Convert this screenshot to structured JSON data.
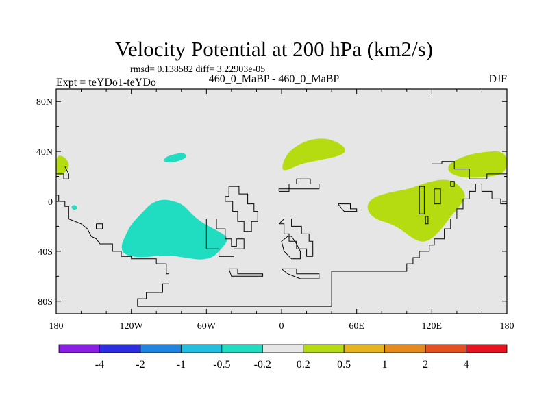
{
  "chart_data": {
    "type": "contour-map",
    "title": "Velocity Potential at 200 hPa (km2/s)",
    "stats": "rmsd= 0.138582  diff= 3.22903e-05",
    "experiment": "Expt = teYDo1-teYDo",
    "case": "460_0_MaBP - 460_0_MaBP",
    "season": "DJF",
    "xlim": [
      180,
      540
    ],
    "ylim": [
      -90,
      90
    ],
    "x_ticks": [
      {
        "value": 180,
        "label": "180"
      },
      {
        "value": 240,
        "label": "120W"
      },
      {
        "value": 300,
        "label": "60W"
      },
      {
        "value": 360,
        "label": "0"
      },
      {
        "value": 420,
        "label": "60E"
      },
      {
        "value": 480,
        "label": "120E"
      },
      {
        "value": 540,
        "label": "180"
      }
    ],
    "y_ticks": [
      {
        "value": 80,
        "label": "80N"
      },
      {
        "value": 40,
        "label": "40N"
      },
      {
        "value": 0,
        "label": "0"
      },
      {
        "value": -40,
        "label": "40S"
      },
      {
        "value": -80,
        "label": "80S"
      }
    ],
    "colorbar": {
      "colors": [
        "#8b1ee6",
        "#2a2ee0",
        "#1e86e0",
        "#22c0e0",
        "#20dcc0",
        "#e6e6e6",
        "#b4dc10",
        "#e6b41e",
        "#e68a1e",
        "#e6501e",
        "#e6141e"
      ],
      "labels": [
        "-4",
        "-2",
        "-1",
        "-0.5",
        "-0.2",
        "0.2",
        "0.5",
        "1",
        "2",
        "4"
      ]
    },
    "background_color": "#e6e6e6",
    "regions": [
      {
        "name": "cyan-southeast-pacific",
        "color": "#20dcc0",
        "points": [
          [
            235,
            -28
          ],
          [
            232,
            -35
          ],
          [
            233,
            -42
          ],
          [
            245,
            -45
          ],
          [
            258,
            -44
          ],
          [
            270,
            -43
          ],
          [
            283,
            -45
          ],
          [
            295,
            -47
          ],
          [
            305,
            -45
          ],
          [
            312,
            -38
          ],
          [
            318,
            -30
          ],
          [
            312,
            -25
          ],
          [
            298,
            -18
          ],
          [
            290,
            -12
          ],
          [
            282,
            -3
          ],
          [
            275,
            0
          ],
          [
            265,
            2
          ],
          [
            255,
            -2
          ],
          [
            248,
            -10
          ],
          [
            240,
            -18
          ]
        ]
      },
      {
        "name": "cyan-north-pacific",
        "color": "#20dcc0",
        "points": [
          [
            265,
            32
          ],
          [
            268,
            36
          ],
          [
            275,
            38
          ],
          [
            282,
            39
          ],
          [
            285,
            36
          ],
          [
            280,
            33
          ],
          [
            272,
            31
          ]
        ]
      },
      {
        "name": "cyan-small-patch",
        "color": "#20dcc0",
        "points": [
          [
            192,
            -5
          ],
          [
            193,
            -3
          ],
          [
            196,
            -3
          ],
          [
            197,
            -6
          ],
          [
            194,
            -7
          ]
        ]
      },
      {
        "name": "green-north-africa",
        "color": "#b4dc10",
        "points": [
          [
            360,
            25
          ],
          [
            362,
            34
          ],
          [
            368,
            42
          ],
          [
            380,
            49
          ],
          [
            395,
            51
          ],
          [
            408,
            46
          ],
          [
            412,
            40
          ],
          [
            405,
            36
          ],
          [
            390,
            33
          ],
          [
            375,
            30
          ],
          [
            365,
            25
          ]
        ]
      },
      {
        "name": "green-west-pacific",
        "color": "#b4dc10",
        "points": [
          [
            430,
            -10
          ],
          [
            428,
            -3
          ],
          [
            433,
            3
          ],
          [
            445,
            7
          ],
          [
            462,
            10
          ],
          [
            475,
            15
          ],
          [
            490,
            18
          ],
          [
            500,
            15
          ],
          [
            508,
            5
          ],
          [
            503,
            -3
          ],
          [
            495,
            -12
          ],
          [
            488,
            -22
          ],
          [
            480,
            -30
          ],
          [
            473,
            -33
          ],
          [
            465,
            -30
          ],
          [
            455,
            -22
          ],
          [
            445,
            -17
          ],
          [
            437,
            -15
          ]
        ]
      },
      {
        "name": "green-northwest-pacific",
        "color": "#b4dc10",
        "points": [
          [
            492,
            28
          ],
          [
            500,
            34
          ],
          [
            515,
            39
          ],
          [
            540,
            41
          ],
          [
            540,
            22
          ],
          [
            520,
            19
          ],
          [
            505,
            19
          ],
          [
            495,
            22
          ]
        ]
      },
      {
        "name": "green-dateline-west",
        "color": "#b4dc10",
        "points": [
          [
            180,
            38
          ],
          [
            180,
            20
          ],
          [
            186,
            22
          ],
          [
            191,
            28
          ],
          [
            188,
            35
          ]
        ]
      }
    ],
    "coastlines": [
      [
        [
          180,
          22
        ],
        [
          186,
          22
        ],
        [
          186,
          18
        ],
        [
          190,
          18
        ],
        [
          190,
          22
        ],
        [
          187,
          28
        ]
      ],
      [
        [
          180,
          5
        ],
        [
          182,
          5
        ],
        [
          182,
          0
        ],
        [
          187,
          0
        ],
        [
          187,
          -4
        ],
        [
          190,
          -4
        ],
        [
          190,
          -14
        ],
        [
          200,
          -18
        ],
        [
          205,
          -22
        ],
        [
          208,
          -28
        ],
        [
          212,
          -30
        ],
        [
          215,
          -34
        ],
        [
          225,
          -34
        ],
        [
          225,
          -40
        ],
        [
          232,
          -40
        ],
        [
          232,
          -44
        ],
        [
          240,
          -44
        ],
        [
          240,
          -46
        ],
        [
          260,
          -46
        ],
        [
          260,
          -50
        ],
        [
          268,
          -50
        ],
        [
          268,
          -58
        ],
        [
          270,
          -58
        ],
        [
          270,
          -66
        ],
        [
          265,
          -66
        ],
        [
          265,
          -73
        ],
        [
          252,
          -73
        ],
        [
          252,
          -78
        ],
        [
          245,
          -78
        ],
        [
          245,
          -84
        ],
        [
          400,
          -84
        ],
        [
          400,
          -56
        ],
        [
          460,
          -56
        ],
        [
          460,
          -50
        ],
        [
          465,
          -50
        ],
        [
          465,
          -45
        ],
        [
          470,
          -45
        ],
        [
          470,
          -40
        ],
        [
          478,
          -40
        ],
        [
          478,
          -35
        ],
        [
          482,
          -35
        ],
        [
          482,
          -30
        ],
        [
          490,
          -30
        ],
        [
          490,
          -22
        ],
        [
          495,
          -22
        ],
        [
          495,
          -14
        ],
        [
          500,
          -14
        ],
        [
          500,
          -6
        ],
        [
          505,
          -6
        ],
        [
          505,
          2
        ],
        [
          510,
          2
        ],
        [
          510,
          8
        ],
        [
          515,
          8
        ],
        [
          515,
          14
        ],
        [
          520,
          14
        ],
        [
          520,
          8
        ],
        [
          528,
          8
        ],
        [
          528,
          2
        ],
        [
          535,
          2
        ],
        [
          535,
          -2
        ],
        [
          540,
          -2
        ]
      ],
      [
        [
          212,
          -18
        ],
        [
          217,
          -18
        ],
        [
          217,
          -22
        ],
        [
          212,
          -22
        ],
        [
          212,
          -18
        ]
      ],
      [
        [
          315,
          0
        ],
        [
          321,
          0
        ],
        [
          321,
          -8
        ],
        [
          325,
          -8
        ],
        [
          325,
          -16
        ],
        [
          330,
          -16
        ],
        [
          330,
          -24
        ],
        [
          336,
          -24
        ],
        [
          336,
          -16
        ],
        [
          341,
          -16
        ],
        [
          341,
          -8
        ],
        [
          338,
          -8
        ],
        [
          338,
          -2
        ],
        [
          333,
          -2
        ],
        [
          333,
          6
        ],
        [
          326,
          6
        ],
        [
          326,
          12
        ],
        [
          318,
          12
        ],
        [
          318,
          4
        ],
        [
          315,
          4
        ],
        [
          315,
          0
        ]
      ],
      [
        [
          300,
          -14
        ],
        [
          308,
          -14
        ],
        [
          308,
          -22
        ],
        [
          315,
          -22
        ],
        [
          315,
          -30
        ],
        [
          320,
          -30
        ],
        [
          320,
          -36
        ],
        [
          324,
          -36
        ],
        [
          324,
          -30
        ],
        [
          330,
          -30
        ],
        [
          330,
          -38
        ],
        [
          322,
          -38
        ],
        [
          322,
          -44
        ],
        [
          310,
          -44
        ],
        [
          310,
          -38
        ],
        [
          300,
          -38
        ],
        [
          300,
          -14
        ]
      ],
      [
        [
          318,
          -54
        ],
        [
          325,
          -54
        ],
        [
          325,
          -58
        ],
        [
          345,
          -58
        ],
        [
          345,
          -60
        ],
        [
          320,
          -60
        ],
        [
          318,
          -54
        ]
      ],
      [
        [
          360,
          -54
        ],
        [
          372,
          -54
        ],
        [
          372,
          -58
        ],
        [
          390,
          -58
        ],
        [
          390,
          -62
        ],
        [
          375,
          -62
        ],
        [
          365,
          -58
        ],
        [
          360,
          -54
        ]
      ],
      [
        [
          358,
          8
        ],
        [
          366,
          8
        ],
        [
          366,
          14
        ],
        [
          372,
          14
        ],
        [
          372,
          18
        ],
        [
          383,
          18
        ],
        [
          383,
          14
        ],
        [
          390,
          14
        ],
        [
          390,
          10
        ],
        [
          372,
          10
        ],
        [
          358,
          10
        ],
        [
          358,
          8
        ]
      ],
      [
        [
          358,
          -18
        ],
        [
          362,
          -18
        ],
        [
          362,
          -26
        ],
        [
          366,
          -26
        ],
        [
          366,
          -32
        ],
        [
          372,
          -32
        ],
        [
          372,
          -38
        ],
        [
          380,
          -38
        ],
        [
          380,
          -44
        ],
        [
          385,
          -44
        ],
        [
          385,
          -32
        ],
        [
          382,
          -32
        ],
        [
          382,
          -26
        ],
        [
          376,
          -26
        ],
        [
          376,
          -20
        ],
        [
          368,
          -20
        ],
        [
          368,
          -14
        ],
        [
          362,
          -14
        ],
        [
          358,
          -18
        ]
      ],
      [
        [
          365,
          -28
        ],
        [
          368,
          -28
        ],
        [
          372,
          -34
        ],
        [
          375,
          -40
        ],
        [
          375,
          -46
        ],
        [
          368,
          -46
        ],
        [
          362,
          -40
        ],
        [
          360,
          -32
        ],
        [
          365,
          -28
        ]
      ],
      [
        [
          405,
          -2
        ],
        [
          415,
          -2
        ],
        [
          415,
          -6
        ],
        [
          420,
          -6
        ],
        [
          420,
          -8
        ],
        [
          410,
          -8
        ],
        [
          405,
          -2
        ]
      ],
      [
        [
          475,
          -12
        ],
        [
          477,
          -12
        ],
        [
          477,
          -18
        ],
        [
          475,
          -18
        ],
        [
          475,
          -12
        ]
      ],
      [
        [
          470,
          12
        ],
        [
          474,
          12
        ],
        [
          474,
          -10
        ],
        [
          470,
          -10
        ],
        [
          470,
          12
        ]
      ],
      [
        [
          482,
          10
        ],
        [
          487,
          10
        ],
        [
          487,
          -2
        ],
        [
          482,
          -2
        ],
        [
          482,
          10
        ]
      ],
      [
        [
          495,
          12
        ],
        [
          498,
          12
        ],
        [
          498,
          16
        ],
        [
          495,
          16
        ],
        [
          495,
          12
        ]
      ],
      [
        [
          480,
          30
        ],
        [
          488,
          30
        ],
        [
          488,
          32
        ],
        [
          498,
          32
        ],
        [
          498,
          26
        ],
        [
          510,
          26
        ],
        [
          510,
          18
        ],
        [
          524,
          18
        ],
        [
          524,
          22
        ],
        [
          540,
          22
        ]
      ]
    ]
  }
}
